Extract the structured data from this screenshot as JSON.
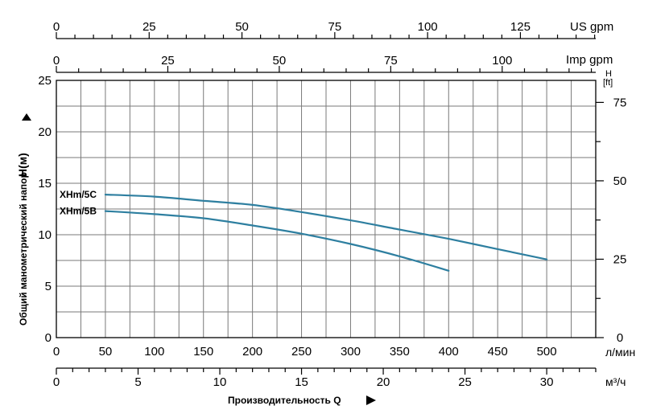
{
  "chart_data": {
    "type": "line",
    "title": "",
    "xlabel": "Производительность Q",
    "ylabel": "Общий манометрический напор",
    "ylabel_symbol": "H(м)",
    "xlim": [
      0,
      550
    ],
    "ylim": [
      0,
      25
    ],
    "x_ticks": [
      0,
      50,
      100,
      150,
      200,
      250,
      300,
      350,
      400,
      450,
      500
    ],
    "x_unit": "л/мин",
    "y_ticks": [
      0,
      5,
      10,
      15,
      20,
      25
    ],
    "right_axis": {
      "unit_line1": "H",
      "unit_line2": "[ft]",
      "ticks": [
        0,
        25,
        50,
        75
      ]
    },
    "top_axis_us": {
      "unit": "US gpm",
      "ticks": [
        0,
        25,
        50,
        75,
        100,
        125
      ]
    },
    "top_axis_imp": {
      "unit": "Imp gpm",
      "ticks": [
        0,
        25,
        50,
        75,
        100
      ]
    },
    "bottom_axis_m3h": {
      "unit": "м³/ч",
      "ticks": [
        0,
        5,
        10,
        15,
        20,
        25,
        30
      ]
    },
    "grid": true,
    "series": [
      {
        "name": "XHm/5C",
        "color": "#2e7fa0",
        "x": [
          50,
          100,
          150,
          200,
          250,
          300,
          350,
          400,
          450,
          500
        ],
        "y": [
          13.9,
          13.7,
          13.3,
          12.9,
          12.2,
          11.4,
          10.5,
          9.6,
          8.6,
          7.6
        ]
      },
      {
        "name": "XHm/5B",
        "color": "#2e7fa0",
        "x": [
          50,
          100,
          150,
          200,
          250,
          300,
          350,
          400
        ],
        "y": [
          12.3,
          12.0,
          11.6,
          10.9,
          10.1,
          9.1,
          7.9,
          6.5
        ]
      }
    ]
  }
}
